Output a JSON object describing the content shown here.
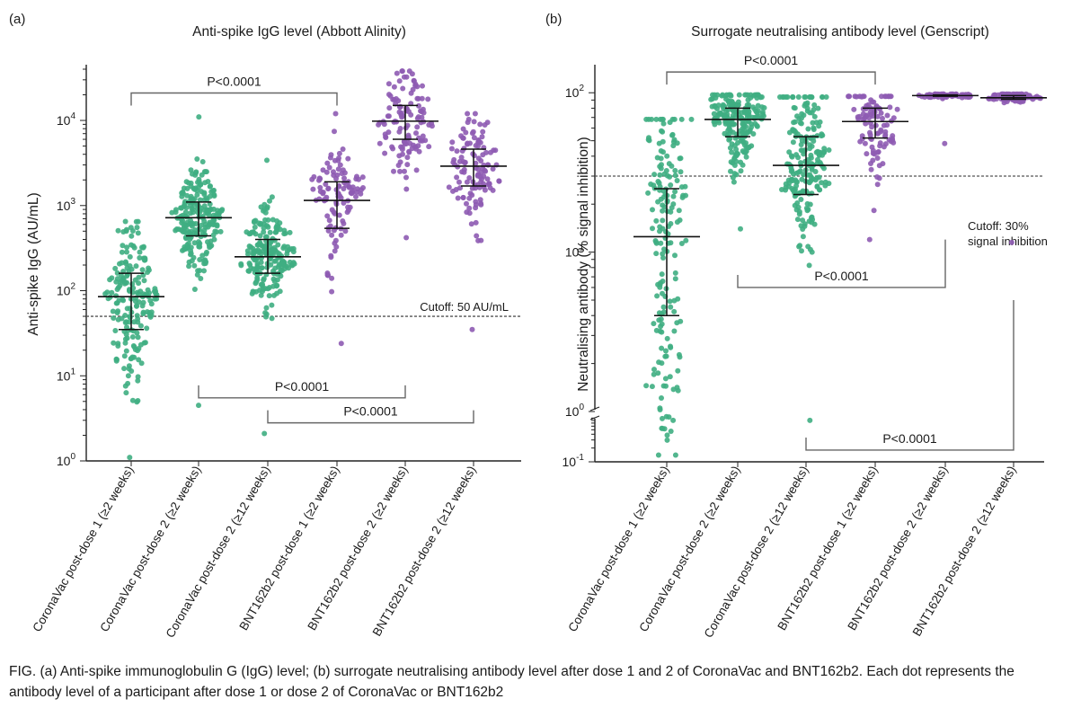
{
  "caption": "FIG.  (a) Anti-spike immunoglobulin G (IgG) level; (b) surrogate neutralising antibody level after dose 1 and 2 of CoronaVac and BNT162b2. Each dot represents the antibody level of a participant after dose 1 or dose 2 of CoronaVac or BNT162b2",
  "colors": {
    "coronavac": "#3fae82",
    "bnt162b2": "#8e5bb3",
    "bar": "#111111",
    "bracket": "#666666",
    "cutoff": "#555555"
  },
  "chart_data": [
    {
      "panel_label": "(a)",
      "type": "scatter",
      "title": "Anti-spike IgG level (Abbott Alinity)",
      "xlabel": "",
      "ylabel": "Anti-spike IgG (AU/mL)",
      "yscale": "log",
      "ylim": [
        1,
        40000
      ],
      "yticks": [
        {
          "value": 1,
          "base": "10",
          "exp": "0"
        },
        {
          "value": 10,
          "base": "10",
          "exp": "1"
        },
        {
          "value": 100,
          "base": "10",
          "exp": "2"
        },
        {
          "value": 1000,
          "base": "10",
          "exp": "3"
        },
        {
          "value": 10000,
          "base": "10",
          "exp": "4"
        }
      ],
      "categories": [
        "CoronaVac post-dose 1 (≥2 weeks)",
        "CoronaVac post-dose 2 (≥2 weeks)",
        "CoronaVac post-dose 2 (≥12 weeks)",
        "BNT162b2 post-dose 1 (≥2 weeks)",
        "BNT162b2 post-dose 2 (≥2 weeks)",
        "BNT162b2 post-dose 2 (≥12 weeks)"
      ],
      "groups": [
        {
          "vaccine": "coronavac",
          "median": 85,
          "q1": 35,
          "q3": 160,
          "min": 1.1,
          "max": 650,
          "n": 190
        },
        {
          "vaccine": "coronavac",
          "median": 720,
          "q1": 440,
          "q3": 1100,
          "min": 4.5,
          "max": 11000,
          "n": 230
        },
        {
          "vaccine": "coronavac",
          "median": 250,
          "q1": 160,
          "q3": 400,
          "min": 2.1,
          "max": 3400,
          "n": 210
        },
        {
          "vaccine": "bnt162b2",
          "median": 1150,
          "q1": 540,
          "q3": 1900,
          "min": 24,
          "max": 12000,
          "n": 110
        },
        {
          "vaccine": "bnt162b2",
          "median": 9800,
          "q1": 6000,
          "q3": 15000,
          "min": 420,
          "max": 38000,
          "n": 120
        },
        {
          "vaccine": "bnt162b2",
          "median": 2900,
          "q1": 1700,
          "q3": 4600,
          "min": 35,
          "max": 12000,
          "n": 120
        }
      ],
      "cutoff": {
        "value": 50,
        "label": "Cutoff: 50 AU/mL"
      },
      "annotations": [
        {
          "from": 0,
          "to": 3,
          "text": "P<0.0001",
          "side": "top",
          "level": 21000
        },
        {
          "from": 1,
          "to": 4,
          "text": "P<0.0001",
          "side": "bottom",
          "level": 5.5
        },
        {
          "from": 2,
          "to": 5,
          "text": "P<0.0001",
          "side": "bottom",
          "level": 2.8
        }
      ]
    },
    {
      "panel_label": "(b)",
      "type": "scatter",
      "title": "Surrogate neutralising antibody level (Genscript)",
      "xlabel": "",
      "ylabel": "Neutralising antibody (% signal inhibition)",
      "yscale": "log",
      "ylim": [
        0.1,
        100
      ],
      "yaxis_break": true,
      "yticks": [
        {
          "value": 0.1,
          "base": "10",
          "exp": "-1"
        },
        {
          "value": 1,
          "base": "10",
          "exp": "0"
        },
        {
          "value": 10,
          "base": "10",
          "exp": "1"
        },
        {
          "value": 100,
          "base": "10",
          "exp": "2"
        }
      ],
      "categories": [
        "CoronaVac post-dose 1 (≥2 weeks)",
        "CoronaVac post-dose 2 (≥2 weeks)",
        "CoronaVac post-dose 2 (≥12 weeks)",
        "BNT162b2 post-dose 1 (≥2 weeks)",
        "BNT162b2 post-dose 2 (≥2 weeks)",
        "BNT162b2 post-dose 2 (≥12 weeks)"
      ],
      "groups": [
        {
          "vaccine": "coronavac",
          "median": 12.5,
          "q1": 4,
          "q3": 25,
          "min": 0.14,
          "max": 68,
          "n": 180
        },
        {
          "vaccine": "coronavac",
          "median": 68,
          "q1": 53,
          "q3": 80,
          "min": 14,
          "max": 97,
          "n": 220
        },
        {
          "vaccine": "coronavac",
          "median": 35,
          "q1": 23,
          "q3": 53,
          "min": 0.8,
          "max": 94,
          "n": 210
        },
        {
          "vaccine": "bnt162b2",
          "median": 66,
          "q1": 52,
          "q3": 80,
          "min": 12,
          "max": 95,
          "n": 100
        },
        {
          "vaccine": "bnt162b2",
          "median": 96,
          "q1": 95,
          "q3": 97,
          "min": 48,
          "max": 98,
          "n": 80
        },
        {
          "vaccine": "bnt162b2",
          "median": 93,
          "q1": 91,
          "q3": 96,
          "min": 11.5,
          "max": 98,
          "n": 80
        }
      ],
      "cutoff": {
        "value": 30,
        "label_lines": [
          "Cutoff: 30%",
          "signal inhibition"
        ]
      },
      "annotations": [
        {
          "from": 0,
          "to": 3,
          "text": "P<0.0001",
          "side": "top",
          "level": 135
        },
        {
          "from": 1,
          "to": 4,
          "text": "P<0.0001",
          "side": "bottom",
          "level": 6,
          "tail_to": 12
        },
        {
          "from": 2,
          "to": 5,
          "text": "P<0.0001",
          "side": "bottom",
          "level": 0.18,
          "tail_to": 5
        }
      ]
    }
  ]
}
